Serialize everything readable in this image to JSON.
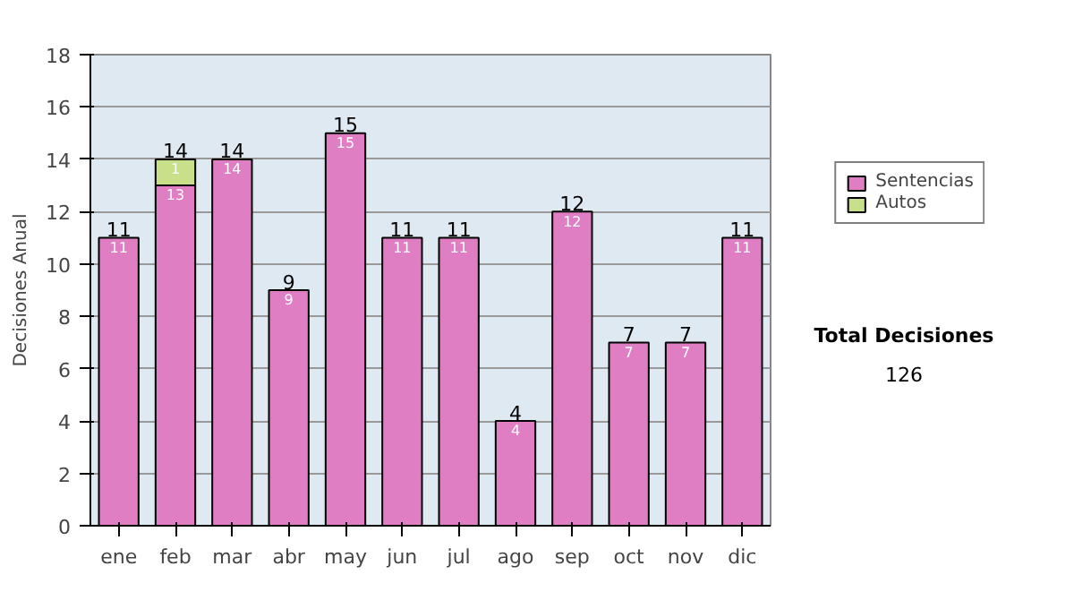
{
  "chart_data": {
    "type": "bar",
    "stacked": true,
    "ylabel": "Decisiones Anual",
    "categories": [
      "ene",
      "feb",
      "mar",
      "abr",
      "may",
      "jun",
      "jul",
      "ago",
      "sep",
      "oct",
      "nov",
      "dic"
    ],
    "series": [
      {
        "name": "Sentencias",
        "color": "#e07ec4",
        "values": [
          11,
          13,
          14,
          9,
          15,
          11,
          11,
          4,
          12,
          7,
          7,
          11
        ]
      },
      {
        "name": "Autos",
        "color": "#c8e08a",
        "values": [
          null,
          1,
          null,
          null,
          null,
          null,
          null,
          null,
          null,
          null,
          null,
          null
        ]
      }
    ],
    "totals": [
      "11",
      "14",
      "14",
      "9",
      "15",
      "11",
      "11",
      "4",
      "12",
      "7",
      "7",
      "11"
    ],
    "data_labels": true,
    "ylim": [
      0,
      18
    ],
    "yticks": [
      0,
      2,
      4,
      6,
      8,
      10,
      12,
      14,
      16,
      18
    ],
    "grid": "y",
    "legend": "right",
    "annotations": [
      "Total Decisiones",
      "126"
    ]
  }
}
